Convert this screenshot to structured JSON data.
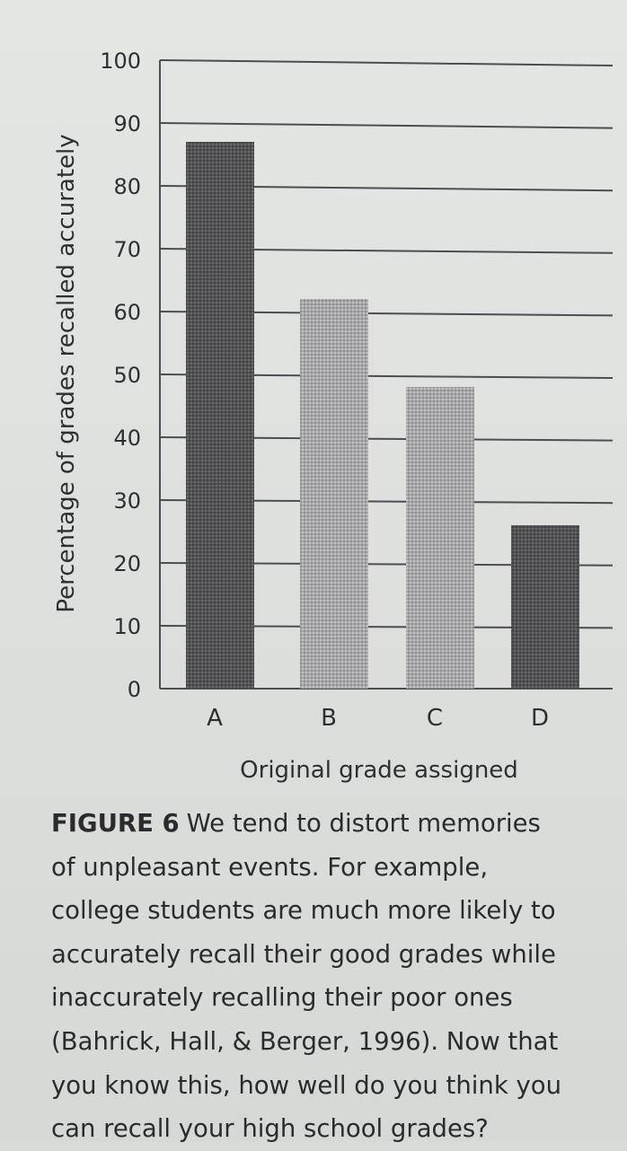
{
  "chart_data": {
    "type": "bar",
    "categories": [
      "A",
      "B",
      "C",
      "D"
    ],
    "values": [
      87,
      62,
      48,
      26
    ],
    "ylim": [
      0,
      100
    ],
    "yticks": [
      0,
      10,
      20,
      30,
      40,
      50,
      60,
      70,
      80,
      90,
      100
    ],
    "xlabel": "Original grade assigned",
    "ylabel": "Percentage of grades recalled accurately",
    "grid": true,
    "legend": "none",
    "bar_colors": [
      "#555558",
      "#a9a9ab",
      "#a9a9ab",
      "#555558"
    ]
  },
  "caption": {
    "label": "FIGURE 6",
    "lines": [
      "We tend to distort memories",
      "of unpleasant events. For example,",
      "college students are much more likely to",
      "accurately recall their good grades while",
      "inaccurately recalling their poor ones",
      "(Bahrick, Hall, & Berger, 1996). Now that",
      "you know this, how well do you think you",
      "can recall your high school grades?"
    ]
  }
}
